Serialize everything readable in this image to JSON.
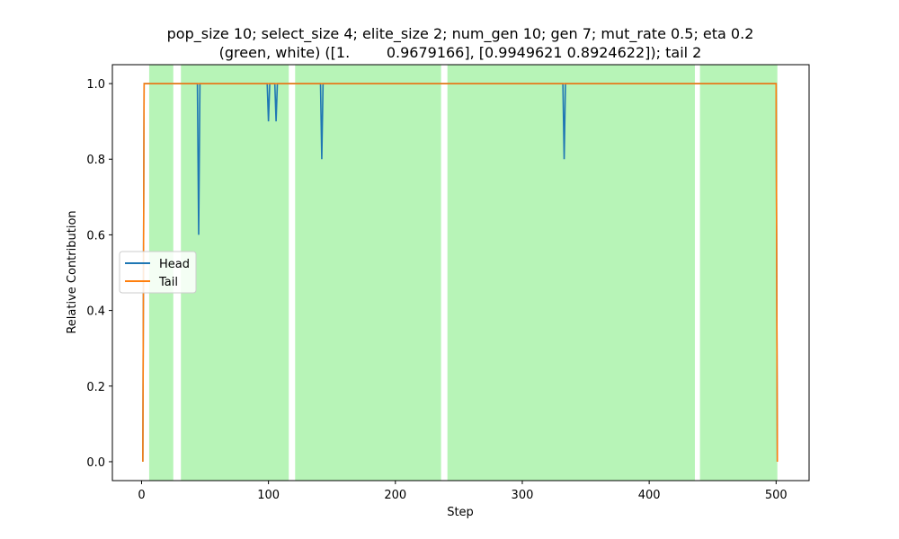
{
  "chart_data": {
    "type": "line",
    "title": "pop_size 10; select_size 4; elite_size 2; num_gen 10; gen 7; mut_rate 0.5; eta 0.2",
    "subtitle": "(green, white) ([1.        0.9679166], [0.9949621 0.8924622]); tail 2",
    "xlabel": "Step",
    "ylabel": "Relative Contribution",
    "xlim": [
      -23,
      526
    ],
    "ylim": [
      -0.05,
      1.05
    ],
    "xticks": [
      0,
      100,
      200,
      300,
      400,
      500
    ],
    "yticks": [
      0.0,
      0.2,
      0.4,
      0.6,
      0.8,
      1.0
    ],
    "ytick_labels": [
      "0.0",
      "0.2",
      "0.4",
      "0.6",
      "0.8",
      "1.0"
    ],
    "grid": false,
    "legend": {
      "placement": "center-left",
      "entries": [
        "Head",
        "Tail"
      ]
    },
    "background_bands": {
      "color": "#90ee90",
      "label": "green",
      "ranges": [
        [
          6,
          25
        ],
        [
          31,
          116
        ],
        [
          121,
          236
        ],
        [
          241,
          436
        ],
        [
          440,
          501
        ]
      ]
    },
    "series": [
      {
        "name": "Head",
        "color": "#1f77b4",
        "points": [
          [
            1,
            0.0
          ],
          [
            2,
            1.0
          ],
          [
            44,
            1.0
          ],
          [
            45,
            0.6
          ],
          [
            46,
            1.0
          ],
          [
            99,
            1.0
          ],
          [
            100,
            0.9
          ],
          [
            101,
            1.0
          ],
          [
            105,
            1.0
          ],
          [
            106,
            0.9
          ],
          [
            107,
            1.0
          ],
          [
            141,
            1.0
          ],
          [
            142,
            0.8
          ],
          [
            143,
            1.0
          ],
          [
            332,
            1.0
          ],
          [
            333,
            0.8
          ],
          [
            334,
            1.0
          ],
          [
            500,
            1.0
          ],
          [
            501,
            0.0
          ]
        ]
      },
      {
        "name": "Tail",
        "color": "#ff7f0e",
        "points": [
          [
            1,
            0.0
          ],
          [
            2,
            1.0
          ],
          [
            500,
            1.0
          ],
          [
            501,
            0.0
          ]
        ]
      }
    ]
  }
}
